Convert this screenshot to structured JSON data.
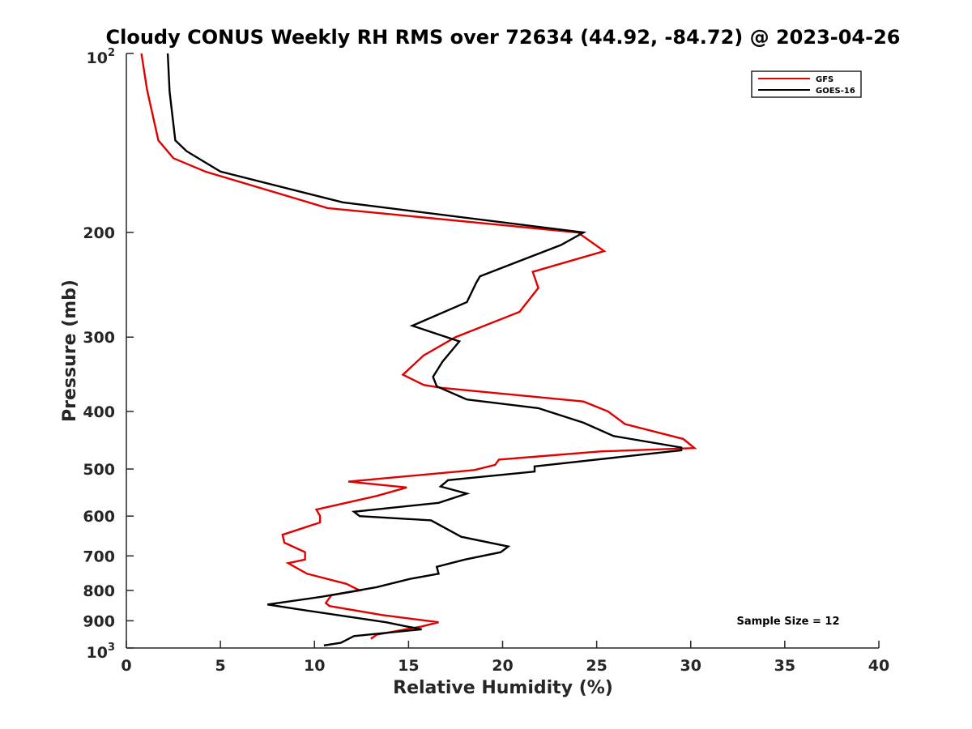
{
  "chart_data": {
    "type": "line",
    "title": "Cloudy CONUS Weekly RH RMS over 72634 (44.92, -84.72) @ 2023-04-26",
    "xlabel": "Relative Humidity (%)",
    "ylabel": "Pressure (mb)",
    "xlim": [
      0,
      40
    ],
    "ylim": [
      100,
      1000
    ],
    "y_scale": "log",
    "y_reversed": true,
    "xticks": [
      0,
      5,
      10,
      15,
      20,
      25,
      30,
      35,
      40
    ],
    "yticks": [
      {
        "value": 100,
        "base": "10",
        "exp": "2"
      },
      {
        "value": 200,
        "label": "200"
      },
      {
        "value": 300,
        "label": "300"
      },
      {
        "value": 400,
        "label": "400"
      },
      {
        "value": 500,
        "label": "500"
      },
      {
        "value": 600,
        "label": "600"
      },
      {
        "value": 700,
        "label": "700"
      },
      {
        "value": 800,
        "label": "800"
      },
      {
        "value": 900,
        "label": "900"
      },
      {
        "value": 1000,
        "base": "10",
        "exp": "3"
      }
    ],
    "grid": false,
    "legend_position": "top-right",
    "annotation": "Sample Size = 12",
    "series": [
      {
        "name": "GFS",
        "color": "#e00000",
        "x": [
          0.8,
          1.1,
          1.7,
          2.5,
          4.2,
          10.7,
          24.0,
          25.4,
          21.6,
          21.9,
          20.9,
          17.5,
          15.8,
          14.7,
          15.8,
          16.7,
          24.3,
          25.6,
          26.5,
          29.6,
          30.2,
          25.2,
          19.8,
          19.6,
          18.5,
          11.8,
          14.9,
          13.3,
          10.1,
          10.3,
          10.3,
          8.3,
          8.4,
          9.5,
          9.5,
          8.6,
          9.6,
          11.7,
          12.4,
          10.9,
          10.6,
          10.8,
          13.6,
          16.6,
          15.7,
          13.3,
          13.0
        ],
        "y": [
          100,
          115,
          140,
          150,
          158,
          182,
          200,
          215,
          233,
          248,
          272,
          300,
          322,
          347,
          361,
          365,
          385,
          400,
          420,
          445,
          461,
          467,
          482,
          492,
          502,
          525,
          537,
          555,
          585,
          600,
          615,
          645,
          665,
          690,
          710,
          720,
          750,
          780,
          800,
          815,
          840,
          850,
          880,
          905,
          920,
          950,
          965
        ],
        "dash": "none"
      },
      {
        "name": "GOES-16",
        "color": "#000000",
        "x": [
          2.2,
          2.3,
          2.6,
          3.2,
          5.0,
          11.5,
          24.3,
          23.1,
          18.8,
          18.6,
          18.1,
          15.2,
          17.7,
          16.8,
          16.3,
          16.5,
          18.1,
          21.9,
          24.3,
          25.9,
          29.5,
          29.5,
          21.7,
          21.7,
          17.1,
          16.7,
          18.1,
          16.6,
          12.1,
          12.4,
          16.2,
          17.8,
          20.3,
          19.9,
          18.0,
          16.5,
          16.6,
          15.1,
          13.3,
          10.4,
          7.5,
          9.6,
          13.8,
          14.9,
          15.7,
          12.1,
          11.4,
          10.5
        ],
        "y": [
          100,
          116,
          140,
          146,
          158,
          178,
          200,
          210,
          237,
          243,
          262,
          287,
          305,
          330,
          350,
          363,
          382,
          395,
          418,
          440,
          460,
          465,
          495,
          505,
          522,
          535,
          550,
          570,
          590,
          600,
          610,
          650,
          675,
          690,
          710,
          730,
          750,
          765,
          790,
          820,
          845,
          865,
          905,
          920,
          930,
          955,
          980,
          990
        ],
        "dash": "none"
      }
    ]
  }
}
